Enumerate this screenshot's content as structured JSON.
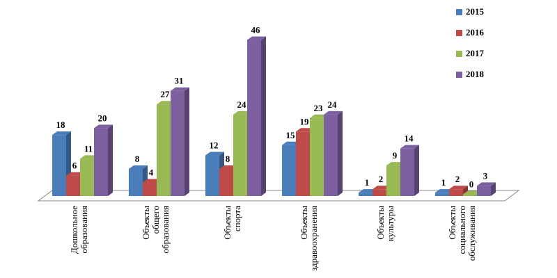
{
  "chart_data": {
    "type": "bar",
    "categories": [
      [
        "Дошкольное",
        "образования"
      ],
      [
        "Объекты",
        "общего",
        "образования"
      ],
      [
        "Объекты",
        "спорта"
      ],
      [
        "Объекты",
        "здравоохранения"
      ],
      [
        "Объекты",
        "культуры"
      ],
      [
        "Объекты",
        "социального",
        "обслуживания"
      ]
    ],
    "series": [
      {
        "name": "2015",
        "color": "#4A7EBB",
        "values": [
          18,
          8,
          12,
          15,
          1,
          1
        ]
      },
      {
        "name": "2016",
        "color": "#BE4B48",
        "values": [
          6,
          4,
          8,
          19,
          2,
          2
        ]
      },
      {
        "name": "2017",
        "color": "#98B954",
        "values": [
          11,
          27,
          24,
          23,
          9,
          0
        ]
      },
      {
        "name": "2018",
        "color": "#7D60A0",
        "values": [
          20,
          31,
          46,
          24,
          14,
          3
        ]
      }
    ],
    "ylim": [
      0,
      50
    ],
    "grid": false,
    "legend": "top-right",
    "three_d": true
  }
}
